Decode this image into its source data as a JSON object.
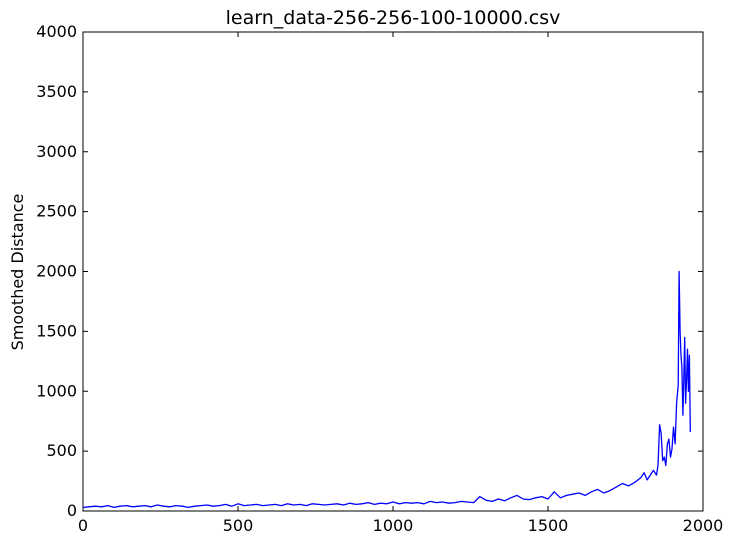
{
  "chart_data": {
    "type": "line",
    "title": "learn_data-256-256-100-10000.csv",
    "xlabel": "",
    "ylabel": "Smoothed Distance",
    "xlim": [
      0,
      2000
    ],
    "ylim": [
      0,
      4000
    ],
    "xticks": [
      "0",
      "500",
      "1000",
      "1500",
      "2000"
    ],
    "yticks": [
      "0",
      "500",
      "1000",
      "1500",
      "2000",
      "2500",
      "3000",
      "3500",
      "4000"
    ],
    "grid": false,
    "legend": "none",
    "series": [
      {
        "color": "#0000ff",
        "x": [
          0,
          20,
          40,
          60,
          80,
          100,
          120,
          140,
          160,
          180,
          200,
          220,
          240,
          260,
          280,
          300,
          320,
          340,
          360,
          380,
          400,
          420,
          440,
          460,
          480,
          500,
          520,
          540,
          560,
          580,
          600,
          620,
          640,
          660,
          680,
          700,
          720,
          740,
          760,
          780,
          800,
          820,
          840,
          860,
          880,
          900,
          920,
          940,
          960,
          980,
          1000,
          1020,
          1040,
          1060,
          1080,
          1100,
          1120,
          1140,
          1160,
          1180,
          1200,
          1220,
          1240,
          1260,
          1280,
          1300,
          1320,
          1340,
          1360,
          1380,
          1400,
          1420,
          1440,
          1460,
          1480,
          1500,
          1520,
          1540,
          1560,
          1580,
          1600,
          1620,
          1640,
          1660,
          1680,
          1700,
          1720,
          1740,
          1760,
          1780,
          1800,
          1810,
          1820,
          1830,
          1840,
          1850,
          1855,
          1860,
          1865,
          1870,
          1875,
          1880,
          1885,
          1890,
          1895,
          1900,
          1905,
          1910,
          1915,
          1920,
          1923,
          1926,
          1929,
          1932,
          1935,
          1938,
          1941,
          1944,
          1947,
          1950,
          1953,
          1956,
          1959
        ],
        "y": [
          30,
          35,
          40,
          35,
          45,
          30,
          40,
          45,
          35,
          40,
          45,
          35,
          50,
          40,
          35,
          45,
          40,
          30,
          40,
          45,
          50,
          40,
          45,
          55,
          40,
          60,
          45,
          50,
          55,
          45,
          50,
          55,
          45,
          60,
          50,
          55,
          45,
          60,
          55,
          50,
          55,
          60,
          50,
          65,
          55,
          60,
          70,
          55,
          65,
          60,
          75,
          60,
          70,
          65,
          70,
          60,
          80,
          70,
          75,
          65,
          70,
          80,
          75,
          70,
          120,
          90,
          80,
          100,
          85,
          110,
          130,
          100,
          95,
          110,
          120,
          100,
          160,
          110,
          130,
          140,
          150,
          130,
          160,
          180,
          150,
          170,
          200,
          230,
          210,
          240,
          280,
          320,
          260,
          300,
          340,
          300,
          380,
          720,
          650,
          420,
          450,
          380,
          560,
          600,
          450,
          520,
          700,
          560,
          900,
          1050,
          2000,
          1500,
          1300,
          1200,
          800,
          1100,
          1450,
          900,
          1100,
          1350,
          1000,
          1300,
          660
        ]
      }
    ]
  }
}
